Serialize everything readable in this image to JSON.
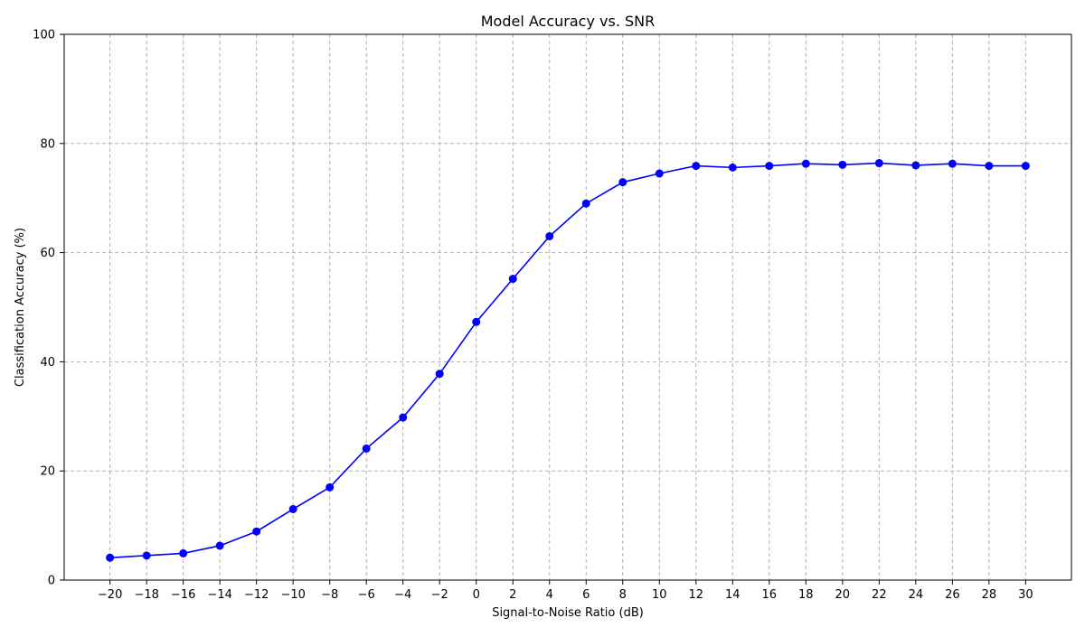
{
  "chart_data": {
    "type": "line",
    "title": "Model Accuracy vs. SNR",
    "xlabel": "Signal-to-Noise Ratio (dB)",
    "ylabel": "Classification Accuracy (%)",
    "x": [
      -20,
      -18,
      -16,
      -14,
      -12,
      -10,
      -8,
      -6,
      -4,
      -2,
      0,
      2,
      4,
      6,
      8,
      10,
      12,
      14,
      16,
      18,
      20,
      22,
      24,
      26,
      28,
      30
    ],
    "series": [
      {
        "values": [
          4.1,
          4.5,
          4.9,
          6.3,
          8.9,
          13.0,
          17.0,
          24.1,
          29.8,
          37.8,
          47.3,
          55.2,
          63.0,
          69.0,
          72.9,
          74.5,
          75.9,
          75.6,
          75.9,
          76.3,
          76.1,
          76.4,
          76.0,
          76.3,
          75.9,
          75.9
        ],
        "color": "#0000ff"
      }
    ],
    "xticks": [
      "−20",
      "−18",
      "−16",
      "−14",
      "−12",
      "−10",
      "−8",
      "−6",
      "−4",
      "−2",
      "0",
      "2",
      "4",
      "6",
      "8",
      "10",
      "12",
      "14",
      "16",
      "18",
      "20",
      "22",
      "24",
      "26",
      "28",
      "30"
    ],
    "yticks": [
      0,
      20,
      40,
      60,
      80,
      100
    ],
    "xlim": [
      -22.5,
      32.5
    ],
    "ylim": [
      0,
      100
    ],
    "grid": true,
    "grid_style": "dashed",
    "marker": "circle"
  }
}
